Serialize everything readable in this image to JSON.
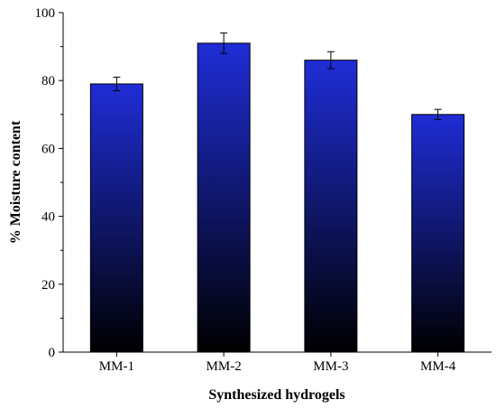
{
  "chart_data": {
    "type": "bar",
    "categories": [
      "MM-1",
      "MM-2",
      "MM-3",
      "MM-4"
    ],
    "values": [
      79,
      91,
      86,
      70
    ],
    "error": [
      2,
      3,
      2.5,
      1.5
    ],
    "xlabel": "Synthesized hydrogels",
    "ylabel": "% Moisture content",
    "ylim": [
      0,
      100
    ],
    "yticks": [
      0,
      20,
      40,
      60,
      80,
      100
    ],
    "grid": false,
    "colors": {
      "bar_top": "#1f2dd6",
      "bar_bottom": "#000000"
    }
  }
}
